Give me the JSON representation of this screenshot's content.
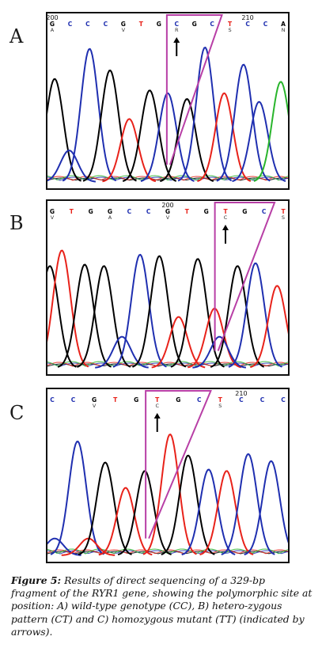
{
  "figure": {
    "caption_label": "Figure 5:",
    "caption_text": "Results of direct sequencing of a 329-bp fragment of the RYR1 gene, showing the polymorphic site at position: A) wild-type genotype (CC), B) hetero-zygous pattern (CT) and C) homozygous mutant (TT) (indicated by arrows)."
  },
  "colors": {
    "A": "#000000",
    "C": "#1f2fb0",
    "G": "#000000",
    "T": "#e8221a",
    "N": "#29b52c",
    "highlight": "#b83fa6"
  },
  "panels": [
    {
      "letter": "A",
      "position_labels": [
        {
          "text": "200",
          "base_index": 0
        },
        {
          "text": "210",
          "base_index": 11
        }
      ],
      "bases": [
        "G",
        "C",
        "C",
        "C",
        "G",
        "T",
        "G",
        "C",
        "G",
        "C",
        "T",
        "C",
        "C",
        "A"
      ],
      "ambig": [
        "A",
        "",
        "",
        "",
        "V",
        "",
        "",
        "R",
        "",
        "",
        "S",
        "",
        "",
        "N"
      ],
      "variant_index": 7,
      "peaks": [
        {
          "base": "A",
          "pos": 0.03,
          "h": 0.72
        },
        {
          "base": "C",
          "pos": 0.09,
          "h": 0.22
        },
        {
          "base": "C",
          "pos": 0.175,
          "h": 0.93
        },
        {
          "base": "G",
          "pos": 0.26,
          "h": 0.78
        },
        {
          "base": "T",
          "pos": 0.34,
          "h": 0.44
        },
        {
          "base": "G",
          "pos": 0.425,
          "h": 0.64
        },
        {
          "base": "C",
          "pos": 0.5,
          "h": 0.62
        },
        {
          "base": "G",
          "pos": 0.58,
          "h": 0.58
        },
        {
          "base": "C",
          "pos": 0.655,
          "h": 0.94
        },
        {
          "base": "T",
          "pos": 0.735,
          "h": 0.62
        },
        {
          "base": "C",
          "pos": 0.815,
          "h": 0.82
        },
        {
          "base": "C",
          "pos": 0.88,
          "h": 0.56
        },
        {
          "base": "N",
          "pos": 0.97,
          "h": 0.7
        }
      ]
    },
    {
      "letter": "B",
      "position_labels": [
        {
          "text": "200",
          "base_index": 6
        }
      ],
      "bases": [
        "G",
        "T",
        "G",
        "G",
        "C",
        "C",
        "G",
        "T",
        "G",
        "T",
        "G",
        "C",
        "T"
      ],
      "ambig": [
        "V",
        "",
        "",
        "A",
        "",
        "",
        "V",
        "",
        "",
        "C",
        "",
        "",
        "S"
      ],
      "variant_index": 9,
      "peaks": [
        {
          "base": "G",
          "pos": 0.01,
          "h": 0.72
        },
        {
          "base": "T",
          "pos": 0.06,
          "h": 0.83
        },
        {
          "base": "G",
          "pos": 0.155,
          "h": 0.73
        },
        {
          "base": "G",
          "pos": 0.235,
          "h": 0.72
        },
        {
          "base": "C",
          "pos": 0.31,
          "h": 0.22
        },
        {
          "base": "C",
          "pos": 0.385,
          "h": 0.8
        },
        {
          "base": "G",
          "pos": 0.465,
          "h": 0.79
        },
        {
          "base": "T",
          "pos": 0.545,
          "h": 0.36
        },
        {
          "base": "G",
          "pos": 0.625,
          "h": 0.77
        },
        {
          "base": "T",
          "pos": 0.695,
          "h": 0.42
        },
        {
          "base": "C",
          "pos": 0.715,
          "h": 0.22
        },
        {
          "base": "G",
          "pos": 0.79,
          "h": 0.72
        },
        {
          "base": "C",
          "pos": 0.865,
          "h": 0.74
        },
        {
          "base": "T",
          "pos": 0.955,
          "h": 0.58
        }
      ]
    },
    {
      "letter": "C",
      "position_labels": [
        {
          "text": "210",
          "base_index": 9
        }
      ],
      "bases": [
        "C",
        "C",
        "G",
        "T",
        "G",
        "T",
        "G",
        "C",
        "T",
        "C",
        "C",
        "C"
      ],
      "ambig": [
        "",
        "",
        "V",
        "",
        "",
        "C",
        "",
        "",
        "S",
        "",
        "",
        ""
      ],
      "variant_index": 5,
      "peaks": [
        {
          "base": "C",
          "pos": 0.03,
          "h": 0.12
        },
        {
          "base": "C",
          "pos": 0.125,
          "h": 0.81
        },
        {
          "base": "T",
          "pos": 0.17,
          "h": 0.12
        },
        {
          "base": "G",
          "pos": 0.24,
          "h": 0.66
        },
        {
          "base": "T",
          "pos": 0.325,
          "h": 0.48
        },
        {
          "base": "G",
          "pos": 0.405,
          "h": 0.6
        },
        {
          "base": "T",
          "pos": 0.51,
          "h": 0.86
        },
        {
          "base": "G",
          "pos": 0.585,
          "h": 0.71
        },
        {
          "base": "C",
          "pos": 0.67,
          "h": 0.61
        },
        {
          "base": "T",
          "pos": 0.745,
          "h": 0.6
        },
        {
          "base": "C",
          "pos": 0.835,
          "h": 0.72
        },
        {
          "base": "C",
          "pos": 0.93,
          "h": 0.67
        }
      ]
    }
  ]
}
